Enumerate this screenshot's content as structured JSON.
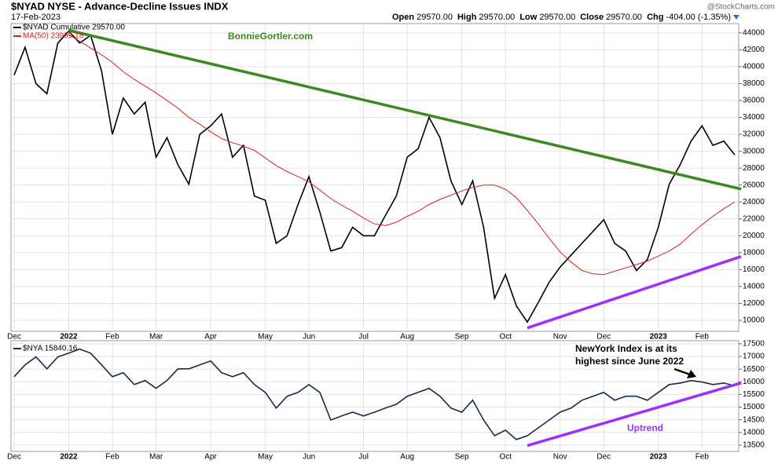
{
  "header": {
    "title": "$NYAD NYSE - Advance-Decline Issues INDX",
    "date": "17-Feb-2023",
    "source": "@StockCharts.com",
    "quote": [
      {
        "label": "Open",
        "value": "29570.00"
      },
      {
        "label": "High",
        "value": "29570.00"
      },
      {
        "label": "Low",
        "value": "29570.00"
      },
      {
        "label": "Close",
        "value": "29570.00"
      },
      {
        "label": "Chg",
        "value": "-404.00 (-1.35%)"
      }
    ]
  },
  "chart_data": [
    {
      "type": "line",
      "categories": [
        "Dec",
        null,
        null,
        null,
        null,
        "2022",
        null,
        null,
        null,
        "Feb",
        null,
        null,
        null,
        "Mar",
        null,
        null,
        null,
        null,
        "Apr",
        null,
        null,
        null,
        null,
        "May",
        null,
        null,
        null,
        "Jun",
        null,
        null,
        null,
        null,
        "Jul",
        null,
        null,
        null,
        "Aug",
        null,
        null,
        null,
        null,
        "Sep",
        null,
        null,
        null,
        "Oct",
        null,
        null,
        null,
        null,
        "Nov",
        null,
        null,
        null,
        "Dec",
        null,
        null,
        null,
        null,
        "2023",
        null,
        null,
        null,
        "Feb",
        null,
        null,
        null
      ],
      "ylim": [
        8700,
        45100
      ],
      "yticks": [
        10000,
        12000,
        14000,
        16000,
        18000,
        20000,
        22000,
        24000,
        26000,
        28000,
        30000,
        32000,
        34000,
        36000,
        38000,
        40000,
        42000,
        44000
      ],
      "grid": true,
      "series": [
        {
          "name": "$NYAD Cumulative 29570.00",
          "color": "#000000",
          "values": [
            39000,
            42300,
            38000,
            36800,
            42800,
            44200,
            42800,
            43700,
            39500,
            32000,
            36300,
            34400,
            35800,
            29300,
            31600,
            28400,
            26100,
            32000,
            33000,
            34400,
            29300,
            30700,
            24700,
            24200,
            19100,
            20000,
            23700,
            27000,
            22800,
            18200,
            18600,
            21000,
            20000,
            20000,
            22400,
            24700,
            29300,
            30300,
            34000,
            31600,
            26500,
            23700,
            26500,
            21000,
            12600,
            15400,
            11700,
            9800,
            12100,
            14500,
            16300,
            17700,
            19100,
            20500,
            21900,
            19100,
            18200,
            15900,
            17200,
            21000,
            26100,
            28400,
            31200,
            33000,
            30700,
            31200,
            29570
          ]
        },
        {
          "name": "MA(50) 23999.18",
          "color": "#d62020",
          "values": [
            null,
            null,
            null,
            null,
            null,
            43800,
            43000,
            42200,
            41400,
            40500,
            39400,
            38500,
            37700,
            36900,
            36000,
            35100,
            34000,
            33200,
            32300,
            31500,
            31000,
            30600,
            30100,
            29200,
            28300,
            27600,
            27000,
            26400,
            25400,
            24400,
            23600,
            22900,
            22100,
            21400,
            21200,
            21600,
            22300,
            22900,
            23700,
            24300,
            24800,
            25300,
            25700,
            26000,
            26000,
            25500,
            24500,
            23000,
            21400,
            19700,
            18100,
            16900,
            15900,
            15500,
            15400,
            15800,
            16200,
            16600,
            17000,
            17600,
            18200,
            19000,
            20200,
            21300,
            22300,
            23200,
            23999.18
          ]
        }
      ],
      "trendlines": [
        {
          "color": "#3a8a1e",
          "from": [
            5,
            44300
          ],
          "to": [
            66,
            25700
          ]
        },
        {
          "color": "#9b30ff",
          "from": [
            47,
            9100
          ],
          "to": [
            66,
            17300
          ]
        }
      ],
      "annotations": [
        {
          "text": "BonnieGortler.com",
          "color": "#3a8a1e"
        }
      ]
    },
    {
      "type": "line",
      "categories": [
        "Dec",
        null,
        null,
        null,
        null,
        "2022",
        null,
        null,
        null,
        "Feb",
        null,
        null,
        null,
        "Mar",
        null,
        null,
        null,
        null,
        "Apr",
        null,
        null,
        null,
        null,
        "May",
        null,
        null,
        null,
        "Jun",
        null,
        null,
        null,
        null,
        "Jul",
        null,
        null,
        null,
        "Aug",
        null,
        null,
        null,
        null,
        "Sep",
        null,
        null,
        null,
        "Oct",
        null,
        null,
        null,
        null,
        "Nov",
        null,
        null,
        null,
        "Dec",
        null,
        null,
        null,
        null,
        "2023",
        null,
        null,
        null,
        "Feb",
        null,
        null,
        null
      ],
      "ylim": [
        13250,
        17620
      ],
      "yticks": [
        13500,
        14000,
        14500,
        15000,
        15500,
        16000,
        16500,
        17000,
        17500
      ],
      "grid": true,
      "series": [
        {
          "name": "$NYA 15840.16",
          "color": "#1a2a4a",
          "values": [
            16200,
            16670,
            16980,
            16510,
            16980,
            17130,
            17290,
            17130,
            16670,
            16200,
            16360,
            15890,
            16050,
            15740,
            16050,
            16510,
            16510,
            16670,
            16820,
            16360,
            16200,
            16360,
            15890,
            15580,
            14960,
            15430,
            15580,
            15890,
            15580,
            14490,
            14650,
            14800,
            14650,
            14800,
            14960,
            15110,
            15430,
            15580,
            15740,
            15430,
            14960,
            14800,
            15270,
            14490,
            13870,
            14090,
            13720,
            13870,
            14180,
            14490,
            14800,
            14960,
            15270,
            15430,
            15580,
            15270,
            15430,
            15430,
            15270,
            15580,
            15890,
            15950,
            16050,
            15990,
            15890,
            15950,
            15840.16
          ]
        }
      ],
      "trendlines": [
        {
          "color": "#9b30ff",
          "from": [
            47,
            13480
          ],
          "to": [
            66,
            15880
          ]
        }
      ],
      "annotations": [
        {
          "text": "NewYork Index is at its",
          "color": "#000000"
        },
        {
          "text": "highest since June 2022",
          "color": "#000000"
        },
        {
          "text": "Uptrend",
          "color": "#9b30ff"
        }
      ]
    }
  ]
}
